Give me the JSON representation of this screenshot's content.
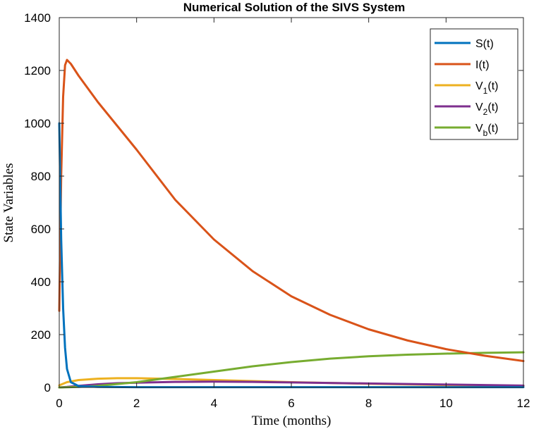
{
  "chart_data": {
    "type": "line",
    "title": "Numerical Solution of the SIVS System",
    "xlabel": "Time (months)",
    "ylabel": "State Variables",
    "xlim": [
      0,
      12
    ],
    "ylim": [
      0,
      1400
    ],
    "xticks": [
      0,
      2,
      4,
      6,
      8,
      10,
      12
    ],
    "yticks": [
      0,
      200,
      400,
      600,
      800,
      1000,
      1200,
      1400
    ],
    "grid": false,
    "legend_position": "top-right",
    "series": [
      {
        "name": "S(t)",
        "color": "#0072BD",
        "x": [
          0,
          0.02,
          0.05,
          0.1,
          0.15,
          0.2,
          0.3,
          0.5,
          1,
          2,
          4,
          6,
          8,
          10,
          12
        ],
        "y": [
          1000,
          820,
          560,
          300,
          150,
          70,
          20,
          5,
          2,
          1,
          1,
          1,
          1,
          1,
          1
        ]
      },
      {
        "name": "I(t)",
        "color": "#D95319",
        "x": [
          0,
          0.02,
          0.05,
          0.1,
          0.15,
          0.2,
          0.3,
          0.5,
          1,
          1.5,
          2,
          3,
          4,
          5,
          6,
          7,
          8,
          9,
          10,
          11,
          12
        ],
        "y": [
          290,
          500,
          800,
          1100,
          1220,
          1240,
          1225,
          1180,
          1080,
          990,
          900,
          710,
          560,
          440,
          345,
          275,
          220,
          178,
          145,
          120,
          100
        ]
      },
      {
        "name_parts": [
          "V",
          "1",
          "(t)"
        ],
        "color": "#EDB120",
        "x": [
          0,
          0.2,
          0.5,
          1,
          1.5,
          2,
          3,
          4,
          5,
          6,
          8,
          10,
          12
        ],
        "y": [
          8,
          20,
          28,
          33,
          35,
          35,
          32,
          28,
          24,
          20,
          14,
          9,
          6
        ]
      },
      {
        "name_parts": [
          "V",
          "2",
          "(t)"
        ],
        "color": "#7E2F8E",
        "x": [
          0,
          0.2,
          0.5,
          1,
          1.5,
          2,
          3,
          4,
          5,
          6,
          8,
          10,
          12
        ],
        "y": [
          0,
          2,
          6,
          12,
          16,
          18,
          21,
          22,
          21,
          19,
          15,
          11,
          7
        ]
      },
      {
        "name_parts": [
          "V",
          "b",
          "(t)"
        ],
        "color": "#77AC30",
        "x": [
          0,
          0.5,
          1,
          1.5,
          2,
          3,
          4,
          5,
          6,
          7,
          8,
          9,
          10,
          11,
          12
        ],
        "y": [
          0,
          2,
          6,
          13,
          20,
          40,
          60,
          80,
          96,
          109,
          118,
          124,
          128,
          131,
          133
        ]
      }
    ]
  }
}
